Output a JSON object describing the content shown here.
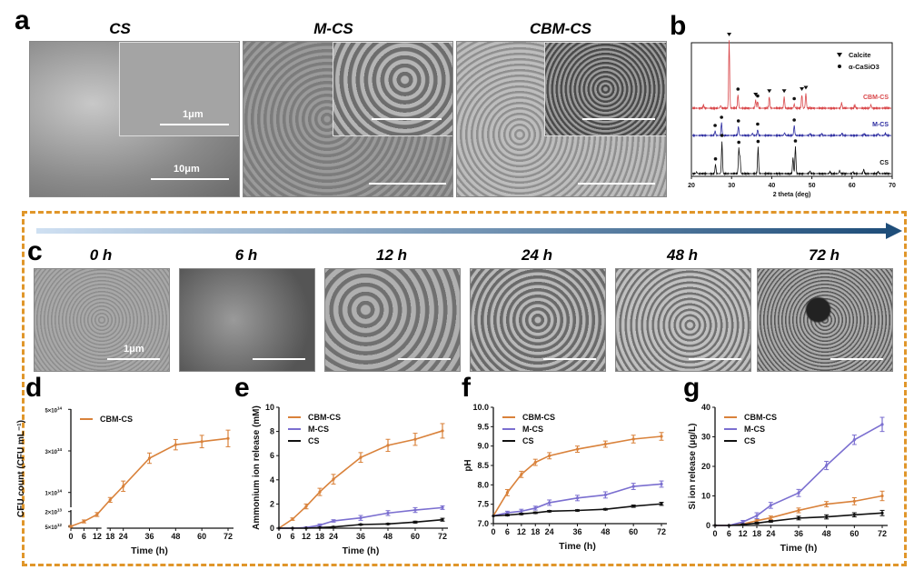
{
  "panel_labels": {
    "a": "a",
    "b": "b",
    "c": "c",
    "d": "d",
    "e": "e",
    "f": "f",
    "g": "g"
  },
  "panel_a": {
    "images": [
      {
        "title": "CS",
        "scale_main": "10μm",
        "scale_inset": "1μm"
      },
      {
        "title": "M-CS",
        "scale_main": "",
        "scale_inset": ""
      },
      {
        "title": "CBM-CS",
        "scale_main": "",
        "scale_inset": ""
      }
    ]
  },
  "panel_c": {
    "images": [
      {
        "time": "0 h",
        "scale": "1μm"
      },
      {
        "time": "6 h"
      },
      {
        "time": "12 h"
      },
      {
        "time": "24 h"
      },
      {
        "time": "48 h"
      },
      {
        "time": "72 h"
      }
    ],
    "arrow_colors": [
      "#cfe0f2",
      "#1f4e7a"
    ]
  },
  "box_color": "#e0962a",
  "chart_data": [
    {
      "id": "b",
      "type": "line",
      "title": "",
      "xlabel": "2 theta (deg)",
      "ylabel": "",
      "xlim": [
        20,
        70
      ],
      "x_ticks": [
        20,
        30,
        40,
        50,
        60,
        70
      ],
      "legend": [
        {
          "marker": "triangle",
          "label": "Calcite"
        },
        {
          "marker": "dot",
          "label": "α-CaSiO3"
        }
      ],
      "legend_position": "top-right",
      "series": [
        {
          "name": "CBM-CS",
          "color": "#d9474a",
          "peaks": [
            [
              23,
              0.05
            ],
            [
              27.3,
              0.04
            ],
            [
              29.4,
              1
            ],
            [
              31.6,
              0.2
            ],
            [
              36.0,
              0.12
            ],
            [
              36.5,
              0.1
            ],
            [
              39.4,
              0.17
            ],
            [
              43.1,
              0.17
            ],
            [
              45.6,
              0.06
            ],
            [
              47.5,
              0.2
            ],
            [
              48.5,
              0.22
            ],
            [
              57.4,
              0.08
            ],
            [
              60.7,
              0.05
            ],
            [
              64.7,
              0.05
            ]
          ],
          "calcite": [
            29.4,
            36.0,
            39.4,
            43.1,
            47.5,
            48.5
          ],
          "casio3": [
            31.6,
            36.5,
            45.6
          ]
        },
        {
          "name": "M-CS",
          "color": "#2b2ba0",
          "peaks": [
            [
              25.9,
              0.1
            ],
            [
              27.5,
              0.28
            ],
            [
              31.7,
              0.2
            ],
            [
              35.2,
              0.05
            ],
            [
              36.5,
              0.13
            ],
            [
              43.2,
              0.06
            ],
            [
              45.6,
              0.22
            ],
            [
              49.5,
              0.04
            ],
            [
              52.4,
              0.04
            ],
            [
              57.5,
              0.05
            ],
            [
              63,
              0.04
            ],
            [
              66.5,
              0.04
            ],
            [
              68.3,
              0.05
            ]
          ],
          "calcite": [],
          "casio3": [
            25.9,
            27.5,
            31.7,
            36.5,
            45.6
          ]
        },
        {
          "name": "CS",
          "color": "#111111",
          "peaks": [
            [
              21.3,
              0.03
            ],
            [
              26,
              0.17
            ],
            [
              27.6,
              0.6
            ],
            [
              31.8,
              0.46
            ],
            [
              32.1,
              0.3
            ],
            [
              36.6,
              0.49
            ],
            [
              45.3,
              0.3
            ],
            [
              45.9,
              0.5
            ],
            [
              49.5,
              0.05
            ],
            [
              54.5,
              0.04
            ],
            [
              56.9,
              0.06
            ],
            [
              60.2,
              0.03
            ],
            [
              62.9,
              0.08
            ],
            [
              66.5,
              0.04
            ]
          ],
          "calcite": [],
          "casio3": [
            26,
            27.6,
            31.8,
            36.6,
            45.9
          ]
        }
      ]
    },
    {
      "id": "d",
      "type": "line",
      "xlabel": "Time (h)",
      "ylabel": "CFU count (CFU mL⁻¹)",
      "x": [
        0,
        6,
        12,
        18,
        24,
        36,
        48,
        60,
        72
      ],
      "x_ticks": [
        0,
        6,
        12,
        18,
        24,
        36,
        48,
        60,
        72
      ],
      "y_ticks": [
        {
          "v": 5000000000000.0,
          "label": "5×10",
          "exp": "12"
        },
        {
          "v": 20000000000000.0,
          "label": "2×10",
          "exp": "13"
        },
        {
          "v": 100000000000000.0,
          "label": "1×10",
          "exp": "14"
        },
        {
          "v": 300000000000000.0,
          "label": "3×10",
          "exp": "14"
        },
        {
          "v": 500000000000000.0,
          "label": "5×10",
          "exp": "14"
        }
      ],
      "y_axis_break": [
        20000000000000.0,
        100000000000000.0
      ],
      "legend_position": "top-left",
      "series": [
        {
          "name": "CBM-CS",
          "color": "#d9823b",
          "values": [
            5000000000000.0,
            10000000000000.0,
            17000000000000.0,
            70000000000000.0,
            130000000000000.0,
            265000000000000.0,
            330000000000000.0,
            345000000000000.0,
            360000000000000.0
          ],
          "errors": [
            1000000000000.0,
            1500000000000.0,
            2000000000000.0,
            10000000000000.0,
            25000000000000.0,
            25000000000000.0,
            25000000000000.0,
            30000000000000.0,
            40000000000000.0
          ]
        }
      ]
    },
    {
      "id": "e",
      "type": "line",
      "xlabel": "Time (h)",
      "ylabel": "Ammonium ion release (mM)",
      "x": [
        0,
        6,
        12,
        18,
        24,
        36,
        48,
        60,
        72
      ],
      "x_ticks": [
        0,
        6,
        12,
        18,
        24,
        36,
        48,
        60,
        72
      ],
      "ylim": [
        0,
        10
      ],
      "y_ticks": [
        0,
        2,
        4,
        6,
        8,
        10
      ],
      "legend_position": "top-left",
      "series": [
        {
          "name": "CBM-CS",
          "color": "#d9823b",
          "values": [
            0,
            0.75,
            1.8,
            3.0,
            4.05,
            5.85,
            6.85,
            7.35,
            8.05
          ],
          "errors": [
            0,
            0.1,
            0.2,
            0.3,
            0.4,
            0.4,
            0.5,
            0.5,
            0.6
          ]
        },
        {
          "name": "M-CS",
          "color": "#7b6fd0",
          "values": [
            0,
            0,
            0.05,
            0.25,
            0.6,
            0.85,
            1.25,
            1.5,
            1.7
          ],
          "errors": [
            0,
            0,
            0.05,
            0.1,
            0.1,
            0.2,
            0.2,
            0.2,
            0.15
          ]
        },
        {
          "name": "CS",
          "color": "#111111",
          "values": [
            0,
            0,
            0,
            0.05,
            0.1,
            0.3,
            0.35,
            0.5,
            0.7
          ],
          "errors": [
            0,
            0,
            0,
            0.02,
            0.05,
            0.05,
            0.05,
            0.08,
            0.12
          ]
        }
      ]
    },
    {
      "id": "f",
      "type": "line",
      "xlabel": "Time (h)",
      "ylabel": "pH",
      "x": [
        0,
        6,
        12,
        18,
        24,
        36,
        48,
        60,
        72
      ],
      "x_ticks": [
        0,
        6,
        12,
        18,
        24,
        36,
        48,
        60,
        72
      ],
      "ylim": [
        7,
        10
      ],
      "y_ticks": [
        "7.0",
        "7.5",
        "8.0",
        "8.5",
        "9.0",
        "9.5",
        "10.0"
      ],
      "legend_position": "top-left",
      "series": [
        {
          "name": "CBM-CS",
          "color": "#d9823b",
          "values": [
            7.2,
            7.8,
            8.27,
            8.58,
            8.75,
            8.92,
            9.05,
            9.18,
            9.25
          ],
          "errors": [
            0,
            0.08,
            0.08,
            0.08,
            0.08,
            0.08,
            0.08,
            0.1,
            0.1
          ]
        },
        {
          "name": "M-CS",
          "color": "#7b6fd0",
          "values": [
            7.2,
            7.28,
            7.32,
            7.4,
            7.54,
            7.66,
            7.74,
            7.96,
            8.02
          ],
          "errors": [
            0,
            0.04,
            0.05,
            0.05,
            0.07,
            0.07,
            0.08,
            0.08,
            0.08
          ]
        },
        {
          "name": "CS",
          "color": "#111111",
          "values": [
            7.2,
            7.22,
            7.25,
            7.28,
            7.32,
            7.34,
            7.37,
            7.45,
            7.51
          ],
          "errors": [
            0,
            0.02,
            0.02,
            0.02,
            0.02,
            0.02,
            0.02,
            0.03,
            0.04
          ]
        }
      ]
    },
    {
      "id": "g",
      "type": "line",
      "xlabel": "Time (h)",
      "ylabel": "Si ion release (μg/L)",
      "x": [
        0,
        6,
        12,
        18,
        24,
        36,
        48,
        60,
        72
      ],
      "x_ticks": [
        0,
        6,
        12,
        18,
        24,
        36,
        48,
        60,
        72
      ],
      "ylim": [
        0,
        40
      ],
      "y_ticks": [
        0,
        10,
        20,
        30,
        40
      ],
      "legend_position": "top-left",
      "series": [
        {
          "name": "CBM-CS",
          "color": "#d9823b",
          "values": [
            0,
            0,
            0.5,
            1.6,
            2.6,
            5.1,
            7.2,
            8.2,
            10
          ],
          "errors": [
            0,
            0,
            0.3,
            0.5,
            0.6,
            0.8,
            0.9,
            1.2,
            1.6
          ]
        },
        {
          "name": "M-CS",
          "color": "#7b6fd0",
          "values": [
            0,
            0,
            1.2,
            3.3,
            6.8,
            11,
            20.3,
            29,
            34.2
          ],
          "errors": [
            0,
            0,
            0.5,
            1,
            1,
            1.2,
            1.4,
            1.6,
            2.4
          ]
        },
        {
          "name": "CS",
          "color": "#111111",
          "values": [
            0,
            0,
            0.3,
            0.8,
            1.4,
            2.5,
            2.9,
            3.6,
            4.2
          ],
          "errors": [
            0,
            0,
            0.2,
            0.3,
            0.3,
            0.6,
            0.7,
            0.7,
            0.9
          ]
        }
      ]
    }
  ]
}
